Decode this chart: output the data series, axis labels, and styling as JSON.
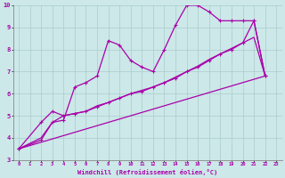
{
  "title": "",
  "xlabel": "Windchill (Refroidissement éolien,°C)",
  "xlim": [
    -0.5,
    23.5
  ],
  "ylim": [
    3,
    10
  ],
  "xticks": [
    0,
    1,
    2,
    3,
    4,
    5,
    6,
    7,
    8,
    9,
    10,
    11,
    12,
    13,
    14,
    15,
    16,
    17,
    18,
    19,
    20,
    21,
    22,
    23
  ],
  "yticks": [
    3,
    4,
    5,
    6,
    7,
    8,
    9,
    10
  ],
  "background_color": "#cce8e8",
  "grid_color": "#aacccc",
  "line_color": "#aa00aa",
  "line1_x": [
    0,
    2,
    3,
    4,
    5,
    6,
    7,
    8,
    9,
    10,
    11,
    12,
    13,
    14,
    15,
    16,
    17,
    18,
    19,
    20,
    21,
    22
  ],
  "line1_y": [
    3.5,
    3.9,
    4.7,
    4.8,
    6.3,
    6.5,
    6.8,
    8.4,
    8.2,
    7.5,
    7.2,
    7.0,
    8.0,
    9.1,
    10.0,
    10.0,
    9.7,
    9.3,
    9.3,
    9.3,
    9.3,
    6.8
  ],
  "line2_x": [
    0,
    2,
    3,
    4,
    5,
    6,
    7,
    8,
    9,
    10,
    11,
    12,
    13,
    14,
    15,
    16,
    17,
    18,
    19,
    20,
    21,
    22
  ],
  "line2_y": [
    3.5,
    4.7,
    5.2,
    5.0,
    5.1,
    5.2,
    5.4,
    5.6,
    5.8,
    6.0,
    6.1,
    6.3,
    6.5,
    6.7,
    7.0,
    7.2,
    7.5,
    7.8,
    8.0,
    8.3,
    9.3,
    6.8
  ],
  "line3_x": [
    0,
    22
  ],
  "line3_y": [
    3.5,
    6.8
  ],
  "line4_x": [
    0,
    2,
    3,
    4,
    5,
    6,
    7,
    8,
    9,
    10,
    11,
    12,
    13,
    14,
    15,
    16,
    17,
    18,
    19,
    20,
    21,
    22
  ],
  "line4_y": [
    3.5,
    4.0,
    4.7,
    5.0,
    5.1,
    5.2,
    5.45,
    5.6,
    5.8,
    6.0,
    6.15,
    6.3,
    6.5,
    6.75,
    7.0,
    7.25,
    7.55,
    7.8,
    8.05,
    8.3,
    8.55,
    6.8
  ]
}
